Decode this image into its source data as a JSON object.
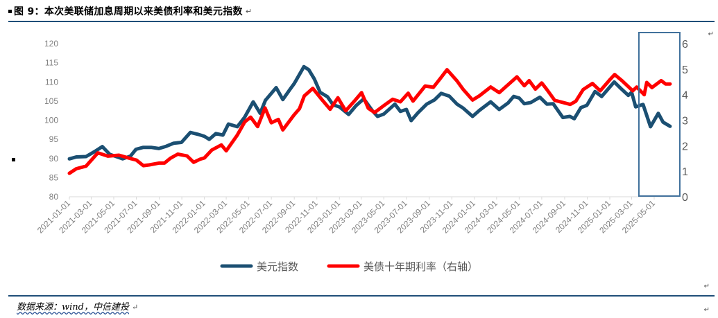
{
  "figure": {
    "title": "图 9：本次美联储加息周期以来美债利率和美元指数",
    "source": "数据来源：wind，中信建投"
  },
  "chart_data": {
    "type": "line",
    "y_left": {
      "ticks": [
        "80",
        "85",
        "90",
        "95",
        "100",
        "105",
        "110",
        "115",
        "120"
      ],
      "range": [
        80,
        120
      ]
    },
    "y_right": {
      "ticks": [
        "0",
        "1",
        "2",
        "3",
        "4",
        "5",
        "6"
      ],
      "range": [
        0,
        6
      ]
    },
    "x_ticks": [
      "2021-01-01",
      "2021-03-01",
      "2021-05-01",
      "2021-07-01",
      "2021-09-01",
      "2021-11-01",
      "2022-01-01",
      "2022-03-01",
      "2022-05-01",
      "2022-07-01",
      "2022-09-01",
      "2022-11-01",
      "2023-01-01",
      "2023-03-01",
      "2023-05-01",
      "2023-07-01",
      "2023-09-01",
      "2023-11-01",
      "2024-01-01",
      "2024-03-01",
      "2024-05-01",
      "2024-07-01",
      "2024-09-01",
      "2024-11-01",
      "2025-01-01",
      "2025-03-01",
      "2025-05-01"
    ],
    "x_range": [
      "2021-01-01",
      "2025-06-15"
    ],
    "grid": false,
    "legend_position": "bottom",
    "highlight_range": [
      "2025-01-01",
      "2025-06-15"
    ],
    "series": [
      {
        "name": "美元指数",
        "axis": "left",
        "color": "#1b4f72",
        "points": [
          [
            "2021-01-01",
            89.9
          ],
          [
            "2021-01-20",
            90.4
          ],
          [
            "2021-02-15",
            90.5
          ],
          [
            "2021-03-10",
            91.8
          ],
          [
            "2021-03-31",
            93.1
          ],
          [
            "2021-04-20",
            91.1
          ],
          [
            "2021-05-25",
            89.9
          ],
          [
            "2021-06-15",
            90.6
          ],
          [
            "2021-06-30",
            92.4
          ],
          [
            "2021-07-20",
            92.9
          ],
          [
            "2021-08-10",
            92.9
          ],
          [
            "2021-08-31",
            92.6
          ],
          [
            "2021-09-20",
            93.2
          ],
          [
            "2021-10-10",
            94.0
          ],
          [
            "2021-10-31",
            94.2
          ],
          [
            "2021-11-24",
            96.8
          ],
          [
            "2021-12-15",
            96.3
          ],
          [
            "2022-01-01",
            95.8
          ],
          [
            "2022-01-14",
            95.0
          ],
          [
            "2022-02-01",
            96.5
          ],
          [
            "2022-02-20",
            96.1
          ],
          [
            "2022-03-07",
            99.0
          ],
          [
            "2022-03-31",
            98.3
          ],
          [
            "2022-04-20",
            100.8
          ],
          [
            "2022-05-13",
            104.8
          ],
          [
            "2022-06-01",
            101.8
          ],
          [
            "2022-06-15",
            105.2
          ],
          [
            "2022-07-14",
            108.5
          ],
          [
            "2022-08-01",
            105.4
          ],
          [
            "2022-08-20",
            108.0
          ],
          [
            "2022-09-01",
            109.6
          ],
          [
            "2022-09-27",
            114.0
          ],
          [
            "2022-10-10",
            113.2
          ],
          [
            "2022-10-25",
            110.8
          ],
          [
            "2022-11-10",
            107.3
          ],
          [
            "2022-11-30",
            106.1
          ],
          [
            "2022-12-15",
            104.0
          ],
          [
            "2023-01-01",
            103.5
          ],
          [
            "2023-01-26",
            101.5
          ],
          [
            "2023-02-15",
            103.8
          ],
          [
            "2023-03-08",
            105.6
          ],
          [
            "2023-03-31",
            102.5
          ],
          [
            "2023-04-14",
            101.0
          ],
          [
            "2023-05-01",
            101.6
          ],
          [
            "2023-05-31",
            104.2
          ],
          [
            "2023-06-15",
            102.3
          ],
          [
            "2023-07-01",
            102.8
          ],
          [
            "2023-07-14",
            99.9
          ],
          [
            "2023-08-01",
            101.9
          ],
          [
            "2023-08-25",
            104.2
          ],
          [
            "2023-09-15",
            105.3
          ],
          [
            "2023-10-03",
            107.0
          ],
          [
            "2023-10-25",
            106.3
          ],
          [
            "2023-11-15",
            104.2
          ],
          [
            "2023-12-01",
            103.2
          ],
          [
            "2023-12-27",
            101.0
          ],
          [
            "2024-01-15",
            102.6
          ],
          [
            "2024-02-14",
            104.8
          ],
          [
            "2024-03-08",
            102.8
          ],
          [
            "2024-04-01",
            104.5
          ],
          [
            "2024-04-16",
            106.2
          ],
          [
            "2024-05-01",
            105.8
          ],
          [
            "2024-05-15",
            104.3
          ],
          [
            "2024-06-01",
            104.6
          ],
          [
            "2024-06-26",
            106.0
          ],
          [
            "2024-07-15",
            104.2
          ],
          [
            "2024-08-01",
            104.3
          ],
          [
            "2024-08-27",
            100.7
          ],
          [
            "2024-09-15",
            101.0
          ],
          [
            "2024-09-27",
            100.4
          ],
          [
            "2024-10-15",
            103.3
          ],
          [
            "2024-10-31",
            103.9
          ],
          [
            "2024-11-22",
            107.5
          ],
          [
            "2024-12-10",
            106.2
          ],
          [
            "2025-01-13",
            110.0
          ],
          [
            "2025-02-01",
            108.2
          ],
          [
            "2025-02-20",
            106.5
          ],
          [
            "2025-03-01",
            107.3
          ],
          [
            "2025-03-12",
            103.5
          ],
          [
            "2025-04-01",
            104.1
          ],
          [
            "2025-04-21",
            98.3
          ],
          [
            "2025-05-12",
            101.8
          ],
          [
            "2025-05-25",
            99.5
          ],
          [
            "2025-06-13",
            98.4
          ]
        ]
      },
      {
        "name": "美债十年期利率（右轴）",
        "axis": "right",
        "color": "#ff0000",
        "points": [
          [
            "2021-01-01",
            0.92
          ],
          [
            "2021-01-20",
            1.1
          ],
          [
            "2021-02-15",
            1.2
          ],
          [
            "2021-03-19",
            1.72
          ],
          [
            "2021-04-15",
            1.59
          ],
          [
            "2021-05-15",
            1.63
          ],
          [
            "2021-06-15",
            1.5
          ],
          [
            "2021-07-01",
            1.44
          ],
          [
            "2021-07-20",
            1.22
          ],
          [
            "2021-08-05",
            1.25
          ],
          [
            "2021-08-31",
            1.32
          ],
          [
            "2021-09-15",
            1.32
          ],
          [
            "2021-10-01",
            1.51
          ],
          [
            "2021-10-21",
            1.67
          ],
          [
            "2021-11-15",
            1.6
          ],
          [
            "2021-12-03",
            1.35
          ],
          [
            "2021-12-20",
            1.47
          ],
          [
            "2022-01-01",
            1.52
          ],
          [
            "2022-01-21",
            1.83
          ],
          [
            "2022-02-16",
            2.03
          ],
          [
            "2022-03-01",
            1.8
          ],
          [
            "2022-03-31",
            2.42
          ],
          [
            "2022-04-20",
            2.93
          ],
          [
            "2022-05-06",
            3.12
          ],
          [
            "2022-05-25",
            2.75
          ],
          [
            "2022-06-14",
            3.48
          ],
          [
            "2022-07-01",
            2.9
          ],
          [
            "2022-07-20",
            3.03
          ],
          [
            "2022-08-01",
            2.62
          ],
          [
            "2022-08-31",
            3.2
          ],
          [
            "2022-09-15",
            3.45
          ],
          [
            "2022-09-28",
            3.95
          ],
          [
            "2022-10-21",
            4.25
          ],
          [
            "2022-11-15",
            3.8
          ],
          [
            "2022-12-07",
            3.43
          ],
          [
            "2022-12-28",
            3.88
          ],
          [
            "2023-01-18",
            3.37
          ],
          [
            "2023-02-10",
            3.74
          ],
          [
            "2023-03-02",
            4.08
          ],
          [
            "2023-03-20",
            3.47
          ],
          [
            "2023-04-06",
            3.3
          ],
          [
            "2023-05-01",
            3.57
          ],
          [
            "2023-05-25",
            3.82
          ],
          [
            "2023-06-15",
            3.72
          ],
          [
            "2023-07-06",
            4.06
          ],
          [
            "2023-07-19",
            3.75
          ],
          [
            "2023-08-21",
            4.34
          ],
          [
            "2023-09-12",
            4.29
          ],
          [
            "2023-09-29",
            4.6
          ],
          [
            "2023-10-19",
            4.98
          ],
          [
            "2023-11-15",
            4.54
          ],
          [
            "2023-12-01",
            4.22
          ],
          [
            "2023-12-27",
            3.79
          ],
          [
            "2024-01-15",
            3.96
          ],
          [
            "2024-02-14",
            4.3
          ],
          [
            "2024-03-08",
            4.08
          ],
          [
            "2024-04-25",
            4.7
          ],
          [
            "2024-05-15",
            4.35
          ],
          [
            "2024-05-28",
            4.55
          ],
          [
            "2024-06-14",
            4.22
          ],
          [
            "2024-07-01",
            4.46
          ],
          [
            "2024-07-15",
            4.2
          ],
          [
            "2024-08-05",
            3.78
          ],
          [
            "2024-09-16",
            3.62
          ],
          [
            "2024-10-01",
            3.74
          ],
          [
            "2024-10-21",
            4.2
          ],
          [
            "2024-11-15",
            4.44
          ],
          [
            "2024-12-06",
            4.15
          ],
          [
            "2024-12-31",
            4.57
          ],
          [
            "2025-01-14",
            4.79
          ],
          [
            "2025-02-03",
            4.55
          ],
          [
            "2025-03-04",
            4.15
          ],
          [
            "2025-03-15",
            4.3
          ],
          [
            "2025-04-04",
            4.0
          ],
          [
            "2025-04-11",
            4.48
          ],
          [
            "2025-04-25",
            4.28
          ],
          [
            "2025-05-20",
            4.55
          ],
          [
            "2025-06-01",
            4.42
          ],
          [
            "2025-06-13",
            4.42
          ]
        ]
      }
    ]
  },
  "legend": [
    {
      "label": "美元指数",
      "color": "#1b4f72"
    },
    {
      "label": "美债十年期利率（右轴）",
      "color": "#ff0000"
    }
  ]
}
